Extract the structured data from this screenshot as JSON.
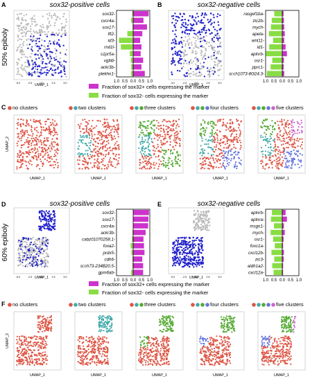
{
  "panels": {
    "A": {
      "letter": "A",
      "title": "sox32-positive cells",
      "axis_x": "UMAP_1",
      "genes": [
        "sox32",
        "cxcr4a",
        "sox17",
        "lft2",
        "id3",
        "rnd1l",
        "s1pr5a",
        "vgll4l",
        "ackr3b",
        "plekhn1"
      ],
      "pos": [
        0.93,
        0.62,
        0.83,
        0.55,
        0.42,
        0.5,
        0.45,
        0.6,
        0.5,
        0.7
      ],
      "neg": [
        0.06,
        0.12,
        0.04,
        0.35,
        0.85,
        0.74,
        0.2,
        0.14,
        0.12,
        0.12
      ],
      "ticks": [
        "1.0",
        "0.5",
        "0.0",
        "0.5",
        "1.0"
      ]
    },
    "B": {
      "letter": "B",
      "title": "sox32-negative cells",
      "axis_x": "UMAP_1",
      "genes": [
        "rasgef1ba",
        "zic2b",
        "mych",
        "apela",
        "wnt11",
        "id1",
        "aplnrb",
        "osr1",
        "pprc1",
        "si:ch1073-80i24.3"
      ],
      "pos": [
        0.08,
        0.1,
        0.12,
        0.15,
        0.12,
        0.2,
        0.28,
        0.1,
        0.09,
        0.12
      ],
      "neg": [
        0.48,
        0.63,
        0.68,
        0.8,
        0.55,
        0.78,
        0.98,
        0.6,
        0.7,
        0.92
      ],
      "ticks": [
        "1.0",
        "0.5",
        "0.0",
        "0.5",
        "1.0"
      ]
    },
    "C": {
      "letter": "C"
    },
    "D": {
      "letter": "D",
      "title": "sox32-positive cells",
      "axis_x": "UMAP_1",
      "genes": [
        "sox32",
        "sox17",
        "cxcr4a",
        "ackr3b",
        "cabz01070258.1",
        "foxa2",
        "prdx5",
        "cdh6",
        "si:ch73-234B20.5",
        "gpm6ab"
      ],
      "pos": [
        0.95,
        0.92,
        0.9,
        0.75,
        0.62,
        0.65,
        0.68,
        0.55,
        0.6,
        0.6
      ],
      "neg": [
        0.0,
        0.0,
        0.02,
        0.05,
        0.08,
        0.15,
        0.1,
        0.05,
        0.05,
        0.12
      ],
      "ticks": [
        "1.0",
        "0.5",
        "0.0",
        "0.5",
        "1.0"
      ]
    },
    "E": {
      "letter": "E",
      "title": "sox32-negative cells",
      "axis_x": "UMAP_1",
      "genes": [
        "aplnrb",
        "aplnra",
        "msgn1",
        "mych",
        "osr1",
        "foxc1a",
        "cxcl12b",
        "zic3",
        "aldh1a2",
        "cxcl12a"
      ],
      "pos": [
        0.2,
        0.28,
        0.1,
        0.15,
        0.08,
        0.05,
        0.1,
        0.09,
        0.05,
        0.05
      ],
      "neg": [
        0.62,
        0.68,
        0.5,
        0.7,
        0.55,
        0.45,
        0.65,
        0.48,
        0.6,
        0.52
      ],
      "ticks": [
        "1.0",
        "0.5",
        "0.0",
        "0.5",
        "1.0"
      ]
    },
    "F": {
      "letter": "F"
    }
  },
  "stages": {
    "top": "50% epiboly",
    "bottom": "60% epiboly"
  },
  "legend": {
    "pos_label": "Fraction of sox32+ cells expressing the marker",
    "neg_label": "Fraction of sox32- cells expressing the marker"
  },
  "clusters": [
    "no clusters",
    "two clusters",
    "three clusters",
    "four clusters",
    "five clusters"
  ],
  "umap": {
    "x_label": "UMAP_1",
    "y_label": "UMAP_2",
    "x_ticks": [
      "-4",
      "-2",
      "0",
      "2",
      "4"
    ],
    "y_ticks": [
      "-2",
      "0",
      "2"
    ]
  },
  "colors": {
    "magenta": "#cc33cc",
    "green": "#88dd44",
    "blue": "#2222cc",
    "grey": "#bbbbbb",
    "c1": "#dd5544",
    "c2": "#44aaaa",
    "c3": "#55aa33",
    "c4": "#6677dd",
    "c5": "#cc66cc"
  }
}
